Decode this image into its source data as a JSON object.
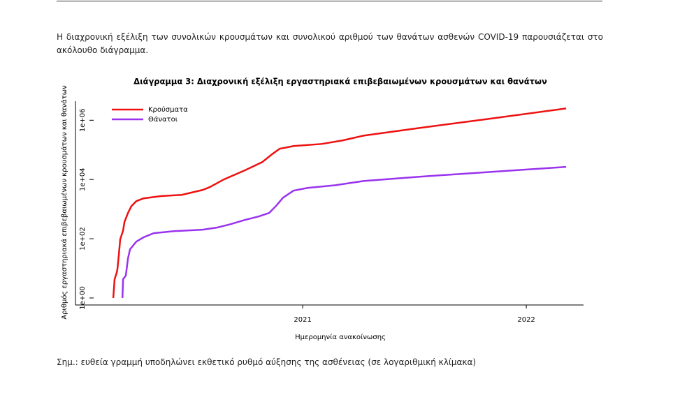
{
  "intro": "Η διαχρονική εξέλιξη των συνολικών κρουσμάτων και συνολικού αριθμού των θανάτων ασθενών COVID-19 παρουσιάζεται στο ακόλουθο διάγραμμα.",
  "note": "Σημ.: ευθεία γραμμή υποδηλώνει εκθετικό ρυθμό αύξησης της ασθένειας (σε λογαριθμική κλίμακα)",
  "chart_data": {
    "type": "line",
    "title": "Διάγραμμα 3: Διαχρονική εξέλιξη εργαστηριακά επιβεβαιωμένων κρουσμάτων και θανάτων",
    "x_label": "Ημερομηνία ανακοίνωσης",
    "y_label": "Αριθμός εργαστηριακά επιβεβαιωμένων κρουσμάτων και θανάτων",
    "y_log": true,
    "legend": "top-left",
    "xlim": [
      2019.984,
      2022.256
    ],
    "xticks": [
      2021,
      2022
    ],
    "ylim": [
      0.58,
      4400000
    ],
    "yticks": [
      {
        "value": 1,
        "label": "1e+00"
      },
      {
        "value": 100,
        "label": "1e+02"
      },
      {
        "value": 10000,
        "label": "1e+04"
      },
      {
        "value": 1000000,
        "label": "1e+06"
      }
    ],
    "series": [
      {
        "name": "Κρούσματα",
        "color": "#ee1111",
        "x": [
          2020.153,
          2020.159,
          2020.169,
          2020.172,
          2020.178,
          2020.184,
          2020.197,
          2020.203,
          2020.219,
          2020.234,
          2020.256,
          2020.288,
          2020.366,
          2020.459,
          2020.553,
          2020.584,
          2020.647,
          2020.741,
          2020.819,
          2020.866,
          2020.897,
          2020.959,
          2021.084,
          2021.178,
          2021.272,
          2021.522,
          2021.834,
          2022.178
        ],
        "values": [
          1,
          4.3,
          7.4,
          10,
          29,
          95,
          190,
          365,
          745,
          1260,
          1860,
          2300,
          2750,
          3020,
          4450,
          5500,
          10000,
          20300,
          38600,
          74000,
          109000,
          135000,
          158000,
          208000,
          302000,
          550000,
          1120000,
          2500000
        ]
      },
      {
        "name": "Θάνατοι",
        "color": "#9933ee",
        "x": [
          2020.194,
          2020.197,
          2020.209,
          2020.219,
          2020.228,
          2020.256,
          2020.288,
          2020.334,
          2020.428,
          2020.553,
          2020.616,
          2020.678,
          2020.741,
          2020.803,
          2020.85,
          2020.881,
          2020.912,
          2020.959,
          2021.022,
          2021.147,
          2021.272,
          2021.522,
          2021.834,
          2022.178
        ],
        "values": [
          1,
          4.3,
          5.7,
          22,
          44,
          80,
          111,
          154,
          181,
          202,
          237,
          311,
          430,
          565,
          740,
          1280,
          2420,
          4200,
          5200,
          6400,
          8900,
          12400,
          17900,
          26600
        ]
      }
    ]
  }
}
